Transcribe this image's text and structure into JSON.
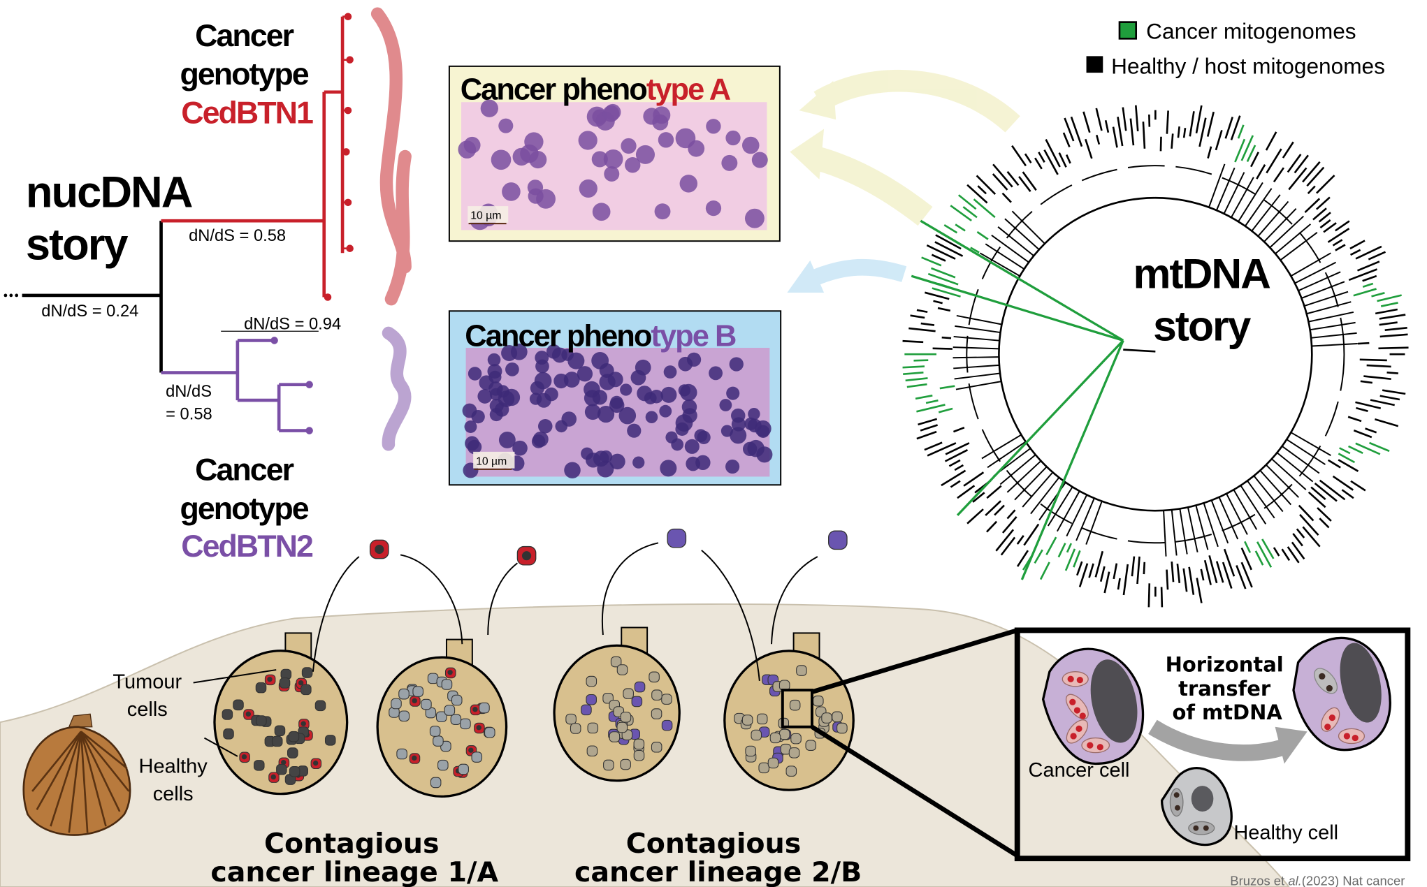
{
  "colors": {
    "red": "#c8202a",
    "purple": "#7a4fa6",
    "green": "#1f9e3c",
    "yellow_box": "#f7f4d2",
    "blue_box": "#b2dcf2",
    "beige": "#ece6da",
    "scallop": "#d8c08e"
  },
  "nuc": {
    "title1": "nucDNA",
    "title2": "story",
    "gen1": {
      "l1": "Cancer",
      "l2": "genotype",
      "l3": "CedBTN1"
    },
    "gen2": {
      "l1": "Cancer",
      "l2": "genotype",
      "l3": "CedBTN2"
    },
    "dnds_root": "dN/dS = 0.24",
    "dnds_red": "dN/dS = 0.58",
    "dnds_purple_top": "dN/dS = 0.94",
    "dnds_purple_l1": "dN/dS",
    "dnds_purple_l2": "= 0.58"
  },
  "phenoA": {
    "t1": "Cancer pheno",
    "t2": "type A",
    "scale": "10 µm"
  },
  "phenoB": {
    "t1": "Cancer pheno",
    "t2": "type B",
    "scale": "10 µm"
  },
  "legend": {
    "cancer": "Cancer mitogenomes",
    "healthy": "Healthy / host mitogenomes"
  },
  "mt": {
    "title1": "mtDNA",
    "title2": "story"
  },
  "bottom": {
    "tumour1": "Tumour",
    "tumour2": "cells",
    "healthy1": "Healthy",
    "healthy2": "cells",
    "lin1a": "Contagious",
    "lin1b": "cancer lineage 1/A",
    "lin2a": "Contagious",
    "lin2b": "cancer lineage 2/B"
  },
  "inset": {
    "h1": "Horizontal",
    "h2": "transfer",
    "h3": "of mtDNA",
    "cancer_cell": "Cancer cell",
    "healthy_cell": "Healthy cell"
  },
  "citation": {
    "pre": "Bruzos et ",
    "ital": "al.",
    "post": "(2023) Nat cancer"
  }
}
